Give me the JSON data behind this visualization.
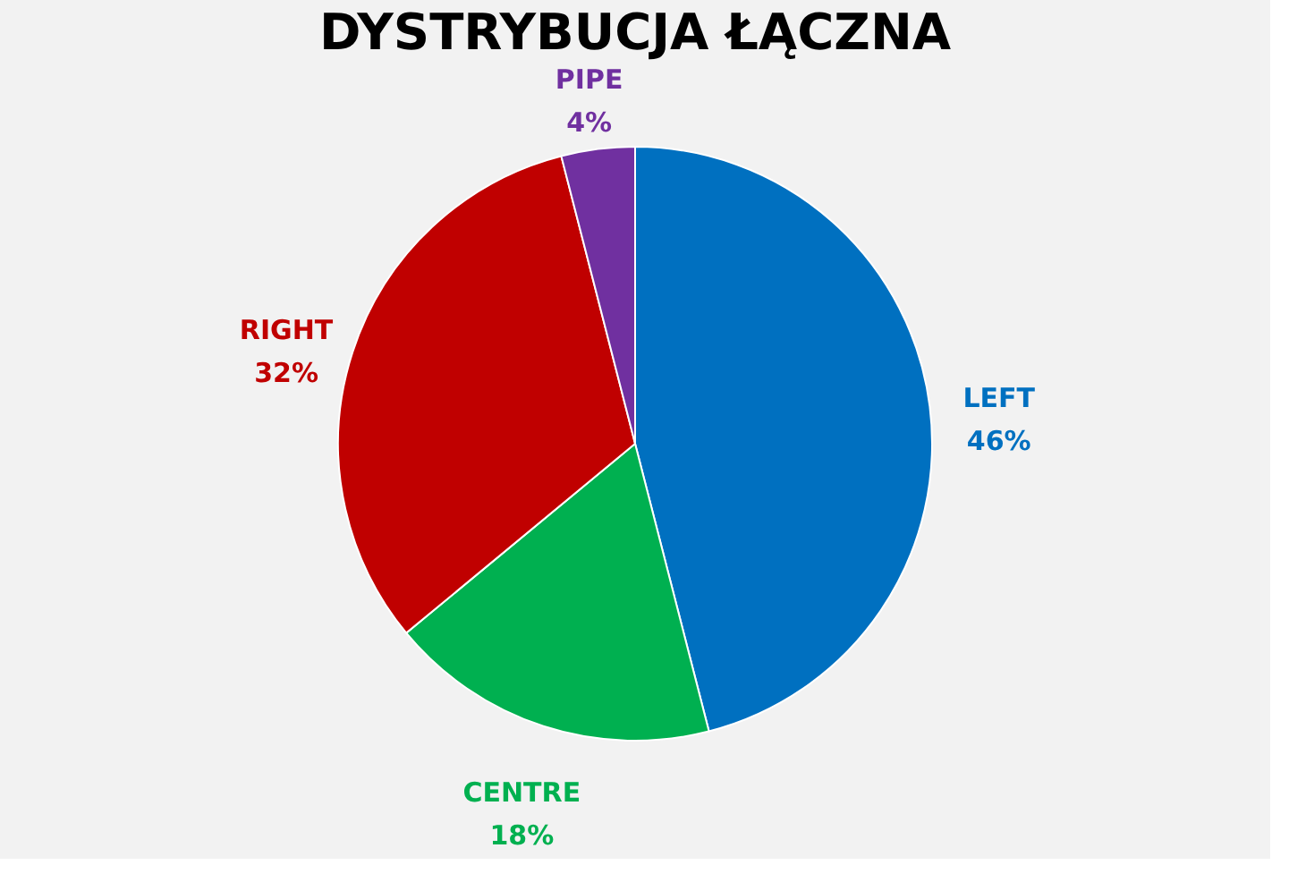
{
  "chart_data": {
    "type": "pie",
    "title": "DYSTRYBUCJA ŁĄCZNA",
    "categories": [
      "LEFT",
      "CENTRE",
      "RIGHT",
      "PIPE"
    ],
    "values": [
      46,
      18,
      32,
      4
    ],
    "value_labels": [
      "46%",
      "18%",
      "32%",
      "4%"
    ],
    "colors": [
      "#0070c0",
      "#00b050",
      "#c00000",
      "#7030a0"
    ],
    "legend": false
  }
}
